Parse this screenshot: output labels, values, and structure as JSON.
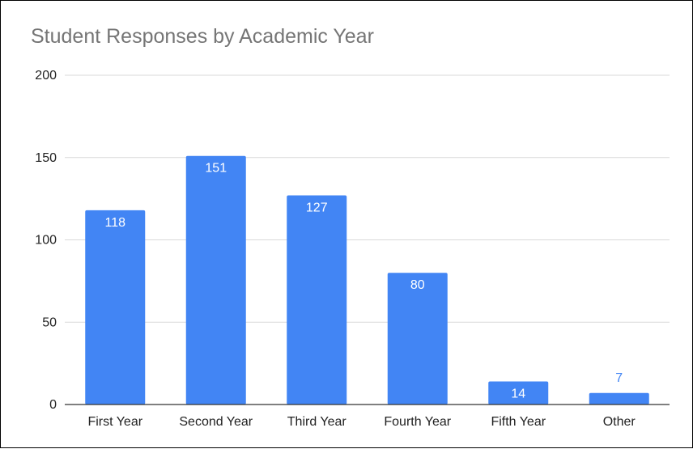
{
  "chart_data": {
    "type": "bar",
    "title": "Student Responses by Academic Year",
    "xlabel": "",
    "ylabel": "",
    "categories": [
      "First Year",
      "Second Year",
      "Third Year",
      "Fourth Year",
      "Fifth Year",
      "Other"
    ],
    "values": [
      118,
      151,
      127,
      80,
      14,
      7
    ],
    "data_labels": [
      "118",
      "151",
      "127",
      "80",
      "14",
      "7"
    ],
    "ylim": [
      0,
      200
    ],
    "yticks": [
      0,
      50,
      100,
      150,
      200
    ],
    "ytick_labels": [
      "0",
      "50",
      "100",
      "150",
      "200"
    ],
    "grid": true,
    "legend": "none",
    "colors": {
      "bar": "#4285f4",
      "label_inside": "#ffffff",
      "label_outside": "#4285f4",
      "title": "#757575",
      "grid": "#d9d9d9",
      "axis": "#333333"
    }
  }
}
